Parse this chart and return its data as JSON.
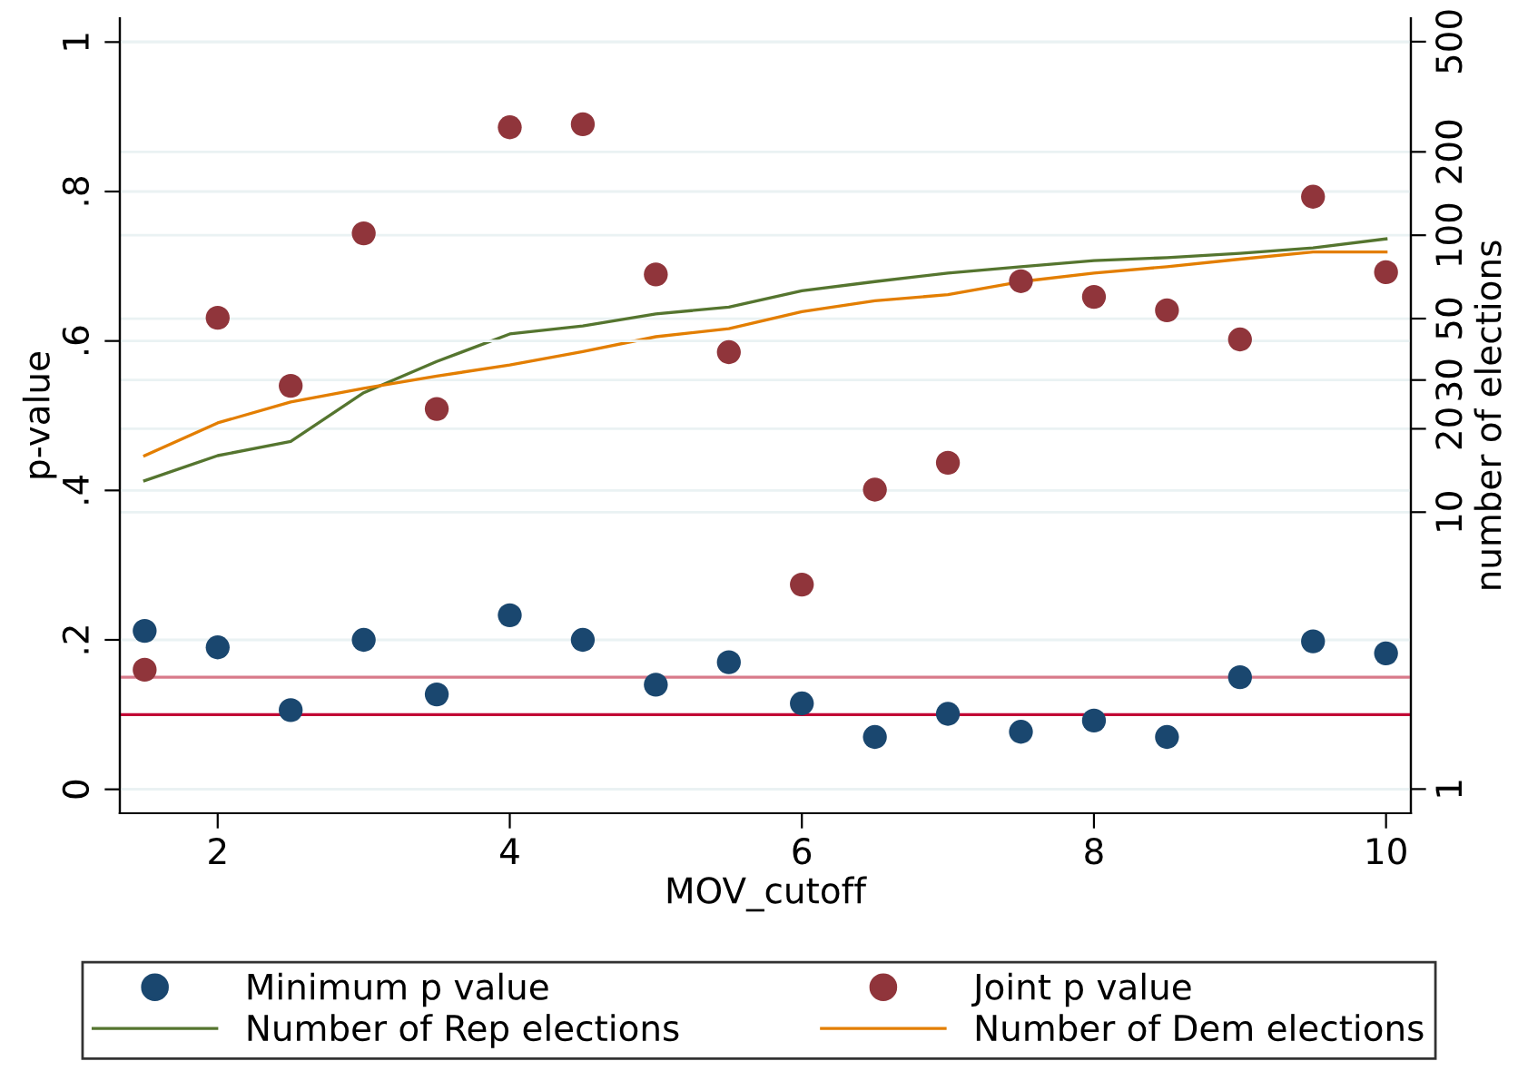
{
  "chart_data": {
    "type": "scatter",
    "xlabel": "MOV_cutoff",
    "ylabel": "p-value",
    "y2label": "number of elections",
    "x": [
      1.5,
      2,
      2.5,
      3,
      3.5,
      4,
      4.5,
      5,
      5.5,
      6,
      6.5,
      7,
      7.5,
      8,
      8.5,
      9,
      9.5,
      10
    ],
    "series": [
      {
        "name": "Minimum p value",
        "marker": "circle",
        "color": "#1a476f",
        "values": [
          0.212,
          0.19,
          0.106,
          0.2,
          0.127,
          0.233,
          0.2,
          0.14,
          0.17,
          0.115,
          0.07,
          0.101,
          0.077,
          0.092,
          0.07,
          0.15,
          0.198,
          0.182
        ]
      },
      {
        "name": "Joint p value",
        "marker": "circle",
        "color": "#90353b",
        "values": [
          0.16,
          0.631,
          0.54,
          0.744,
          0.509,
          0.886,
          0.89,
          0.689,
          0.585,
          0.274,
          0.401,
          0.437,
          0.68,
          0.659,
          0.641,
          0.602,
          0.793,
          0.692
        ]
      },
      {
        "name": "Number of Rep elections",
        "type": "line",
        "axis": "y2",
        "color": "#55752f",
        "values": [
          13,
          16,
          18,
          27,
          35,
          44,
          47,
          52,
          55,
          63,
          68,
          73,
          77,
          81,
          83,
          86,
          90,
          97
        ]
      },
      {
        "name": "Number of Dem elections",
        "type": "line",
        "axis": "y2",
        "color": "#e37e00",
        "values": [
          16,
          21,
          25,
          28,
          31,
          34,
          38,
          43,
          46,
          53,
          58,
          61,
          68,
          73,
          77,
          82,
          87,
          87
        ]
      }
    ],
    "xlim": [
      1.33,
      10.17
    ],
    "xticks": [
      2,
      4,
      6,
      8,
      10
    ],
    "ylim": [
      -0.032,
      1.032
    ],
    "yticks": [
      0,
      {
        "value": 0.2,
        "label": ".2"
      },
      {
        "value": 0.4,
        "label": ".4"
      },
      {
        "value": 0.6,
        "label": ".6"
      },
      {
        "value": 0.8,
        "label": ".8"
      },
      1
    ],
    "y2lim": [
      0.818,
      608
    ],
    "y2ticks": [
      1,
      10,
      20,
      30,
      50,
      100,
      200,
      500
    ],
    "log": "y2",
    "ref_lines": [
      {
        "axis": "y",
        "value": 0.15,
        "color": "#d87a8a"
      },
      {
        "axis": "y",
        "value": 0.1,
        "color": "#c10534"
      }
    ],
    "grid": "y",
    "legend": "bottom"
  }
}
